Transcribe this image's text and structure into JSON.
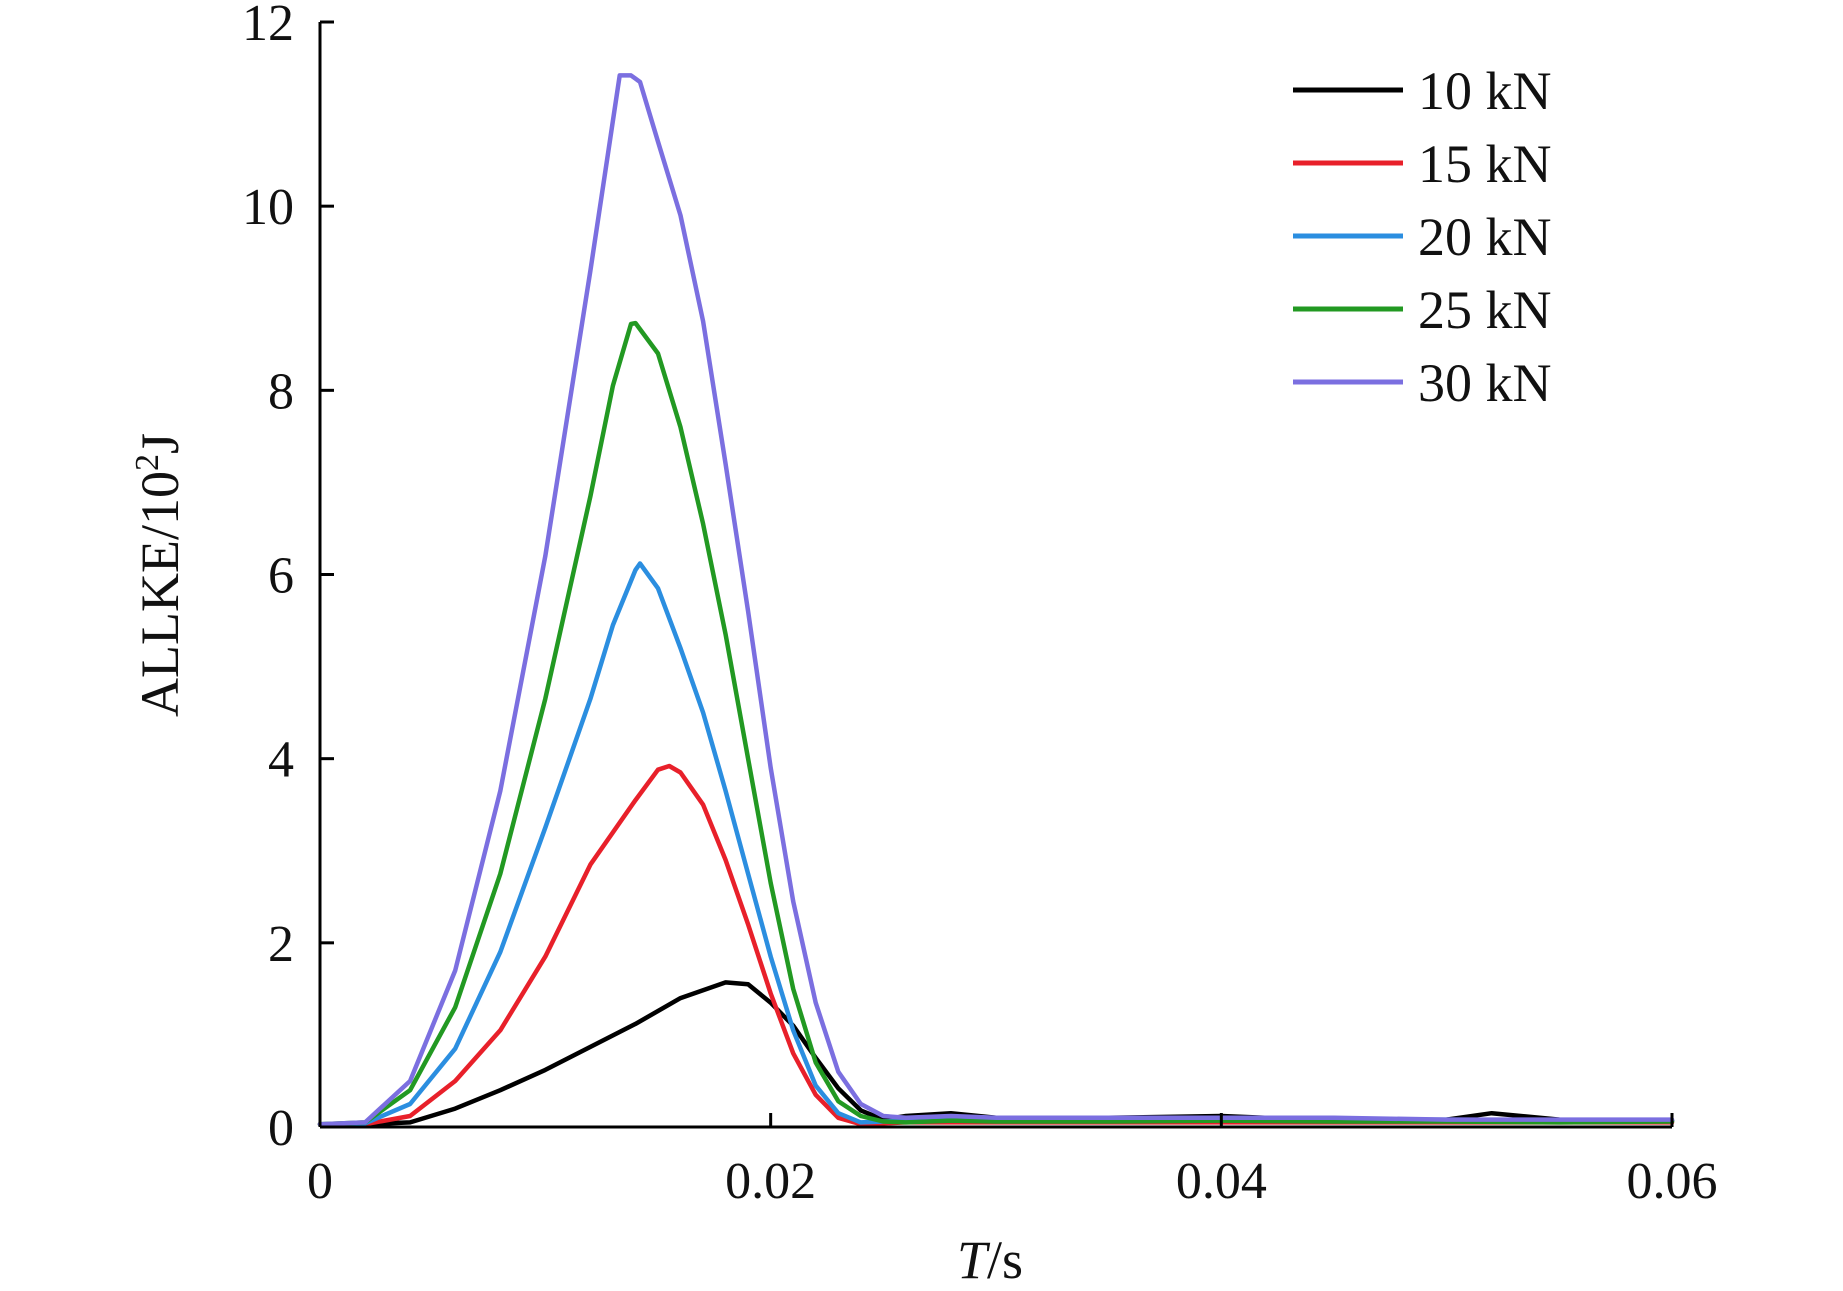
{
  "chart_data": {
    "type": "line",
    "xlabel": {
      "italic": "T",
      "rest": "/s"
    },
    "ylabel": {
      "main": "ALLKE/10",
      "sup": "2",
      "tail": "J"
    },
    "xlim": [
      0,
      0.06
    ],
    "ylim": [
      0,
      12
    ],
    "xticks": [
      0,
      0.02,
      0.04,
      0.06
    ],
    "xtick_labels": [
      "0",
      "0.02",
      "0.04",
      "0.06"
    ],
    "yticks": [
      0,
      2,
      4,
      6,
      8,
      10,
      12
    ],
    "ytick_labels": [
      "0",
      "2",
      "4",
      "6",
      "8",
      "10",
      "12"
    ],
    "grid": false,
    "legend_position": "top-right",
    "series": [
      {
        "name": "10 kN",
        "color": "#000000",
        "points": [
          [
            0,
            0.03
          ],
          [
            0.002,
            0.03
          ],
          [
            0.004,
            0.05
          ],
          [
            0.006,
            0.2
          ],
          [
            0.008,
            0.4
          ],
          [
            0.01,
            0.62
          ],
          [
            0.012,
            0.87
          ],
          [
            0.014,
            1.12
          ],
          [
            0.016,
            1.4
          ],
          [
            0.018,
            1.57
          ],
          [
            0.019,
            1.55
          ],
          [
            0.02,
            1.35
          ],
          [
            0.021,
            1.1
          ],
          [
            0.022,
            0.75
          ],
          [
            0.023,
            0.42
          ],
          [
            0.024,
            0.18
          ],
          [
            0.025,
            0.08
          ],
          [
            0.026,
            0.12
          ],
          [
            0.028,
            0.15
          ],
          [
            0.03,
            0.1
          ],
          [
            0.035,
            0.1
          ],
          [
            0.04,
            0.12
          ],
          [
            0.045,
            0.07
          ],
          [
            0.05,
            0.08
          ],
          [
            0.052,
            0.15
          ],
          [
            0.055,
            0.08
          ],
          [
            0.058,
            0.06
          ],
          [
            0.06,
            0.07
          ]
        ]
      },
      {
        "name": "15 kN",
        "color": "#e8202a",
        "points": [
          [
            0,
            0.03
          ],
          [
            0.002,
            0.03
          ],
          [
            0.004,
            0.12
          ],
          [
            0.006,
            0.5
          ],
          [
            0.008,
            1.05
          ],
          [
            0.01,
            1.85
          ],
          [
            0.012,
            2.85
          ],
          [
            0.014,
            3.55
          ],
          [
            0.015,
            3.88
          ],
          [
            0.0155,
            3.92
          ],
          [
            0.016,
            3.85
          ],
          [
            0.017,
            3.5
          ],
          [
            0.018,
            2.9
          ],
          [
            0.019,
            2.2
          ],
          [
            0.02,
            1.45
          ],
          [
            0.021,
            0.8
          ],
          [
            0.022,
            0.35
          ],
          [
            0.023,
            0.1
          ],
          [
            0.024,
            0.03
          ],
          [
            0.026,
            0.05
          ],
          [
            0.03,
            0.05
          ],
          [
            0.04,
            0.05
          ],
          [
            0.05,
            0.05
          ],
          [
            0.06,
            0.05
          ]
        ]
      },
      {
        "name": "20 kN",
        "color": "#2b8ee0",
        "points": [
          [
            0,
            0.03
          ],
          [
            0.002,
            0.04
          ],
          [
            0.004,
            0.25
          ],
          [
            0.006,
            0.85
          ],
          [
            0.008,
            1.9
          ],
          [
            0.01,
            3.25
          ],
          [
            0.012,
            4.65
          ],
          [
            0.013,
            5.45
          ],
          [
            0.014,
            6.05
          ],
          [
            0.0142,
            6.12
          ],
          [
            0.015,
            5.85
          ],
          [
            0.016,
            5.2
          ],
          [
            0.017,
            4.5
          ],
          [
            0.018,
            3.65
          ],
          [
            0.019,
            2.75
          ],
          [
            0.02,
            1.85
          ],
          [
            0.021,
            1.05
          ],
          [
            0.022,
            0.45
          ],
          [
            0.023,
            0.15
          ],
          [
            0.024,
            0.05
          ],
          [
            0.026,
            0.07
          ],
          [
            0.03,
            0.08
          ],
          [
            0.04,
            0.08
          ],
          [
            0.05,
            0.08
          ],
          [
            0.06,
            0.07
          ]
        ]
      },
      {
        "name": "25 kN",
        "color": "#229922",
        "points": [
          [
            0,
            0.03
          ],
          [
            0.002,
            0.05
          ],
          [
            0.004,
            0.4
          ],
          [
            0.006,
            1.3
          ],
          [
            0.008,
            2.75
          ],
          [
            0.01,
            4.65
          ],
          [
            0.012,
            6.85
          ],
          [
            0.013,
            8.05
          ],
          [
            0.0138,
            8.72
          ],
          [
            0.014,
            8.73
          ],
          [
            0.015,
            8.4
          ],
          [
            0.016,
            7.6
          ],
          [
            0.017,
            6.55
          ],
          [
            0.018,
            5.35
          ],
          [
            0.019,
            4.0
          ],
          [
            0.02,
            2.65
          ],
          [
            0.021,
            1.5
          ],
          [
            0.022,
            0.7
          ],
          [
            0.023,
            0.28
          ],
          [
            0.024,
            0.12
          ],
          [
            0.025,
            0.06
          ],
          [
            0.026,
            0.05
          ],
          [
            0.028,
            0.07
          ],
          [
            0.03,
            0.06
          ],
          [
            0.035,
            0.06
          ],
          [
            0.04,
            0.07
          ],
          [
            0.045,
            0.06
          ],
          [
            0.05,
            0.06
          ],
          [
            0.055,
            0.05
          ],
          [
            0.06,
            0.06
          ]
        ]
      },
      {
        "name": "30 kN",
        "color": "#7b6fe0",
        "points": [
          [
            0,
            0.03
          ],
          [
            0.002,
            0.05
          ],
          [
            0.004,
            0.5
          ],
          [
            0.006,
            1.7
          ],
          [
            0.008,
            3.65
          ],
          [
            0.01,
            6.2
          ],
          [
            0.012,
            9.3
          ],
          [
            0.0128,
            10.6
          ],
          [
            0.0133,
            11.42
          ],
          [
            0.0138,
            11.42
          ],
          [
            0.0142,
            11.35
          ],
          [
            0.015,
            10.7
          ],
          [
            0.016,
            9.9
          ],
          [
            0.017,
            8.75
          ],
          [
            0.018,
            7.2
          ],
          [
            0.019,
            5.6
          ],
          [
            0.02,
            3.9
          ],
          [
            0.021,
            2.45
          ],
          [
            0.022,
            1.35
          ],
          [
            0.023,
            0.6
          ],
          [
            0.024,
            0.25
          ],
          [
            0.025,
            0.12
          ],
          [
            0.026,
            0.1
          ],
          [
            0.028,
            0.12
          ],
          [
            0.03,
            0.1
          ],
          [
            0.035,
            0.1
          ],
          [
            0.04,
            0.1
          ],
          [
            0.045,
            0.1
          ],
          [
            0.05,
            0.08
          ],
          [
            0.055,
            0.08
          ],
          [
            0.06,
            0.08
          ]
        ]
      }
    ]
  }
}
